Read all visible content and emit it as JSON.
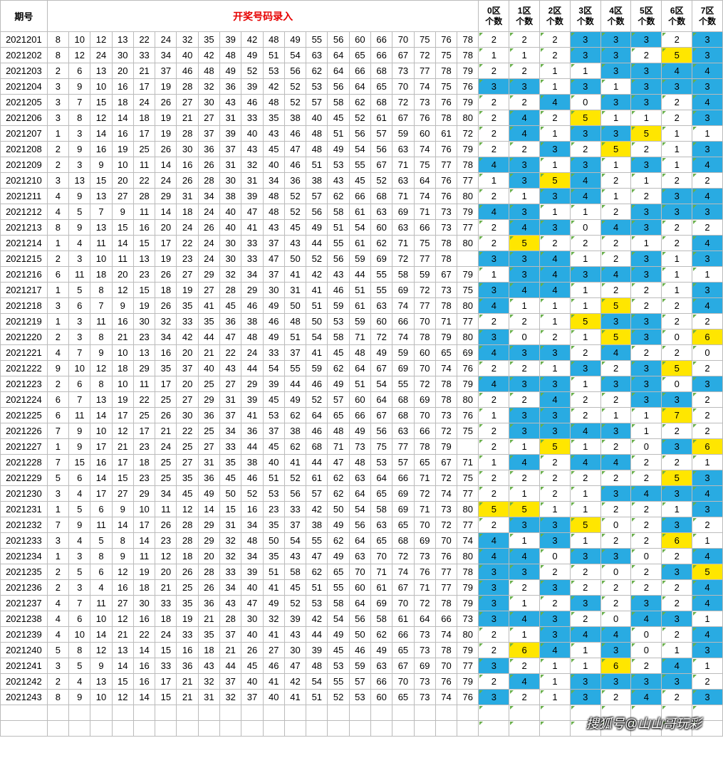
{
  "header": {
    "period": "期号",
    "main_title": "开奖号码录入",
    "zone_labels": [
      "0区",
      "1区",
      "2区",
      "3区",
      "4区",
      "5区",
      "6区",
      "7区"
    ],
    "zone_sub": "个数"
  },
  "watermark": "搜狐号@山山哥玩彩",
  "hl_rules": {
    "blue_min": 3,
    "blue_max": 4,
    "yellow_min": 5
  },
  "rows": [
    {
      "p": "2021201",
      "n": [
        8,
        10,
        12,
        13,
        22,
        24,
        32,
        35,
        39,
        42,
        48,
        49,
        55,
        56,
        60,
        66,
        70,
        75,
        76,
        78
      ],
      "z": [
        2,
        2,
        2,
        3,
        3,
        3,
        2,
        3
      ]
    },
    {
      "p": "2021202",
      "n": [
        8,
        12,
        24,
        30,
        33,
        34,
        40,
        42,
        48,
        49,
        51,
        54,
        63,
        64,
        65,
        66,
        67,
        72,
        75,
        78
      ],
      "z": [
        1,
        1,
        2,
        3,
        3,
        2,
        5,
        3
      ]
    },
    {
      "p": "2021203",
      "n": [
        2,
        6,
        13,
        20,
        21,
        37,
        46,
        48,
        49,
        52,
        53,
        56,
        62,
        64,
        66,
        68,
        73,
        77,
        78,
        79
      ],
      "z": [
        2,
        2,
        1,
        1,
        3,
        3,
        4,
        4
      ]
    },
    {
      "p": "2021204",
      "n": [
        3,
        9,
        10,
        16,
        17,
        19,
        28,
        32,
        36,
        39,
        42,
        52,
        53,
        56,
        64,
        65,
        70,
        74,
        75,
        76
      ],
      "z": [
        3,
        3,
        1,
        3,
        1,
        3,
        3,
        3
      ]
    },
    {
      "p": "2021205",
      "n": [
        3,
        7,
        15,
        18,
        24,
        26,
        27,
        30,
        43,
        46,
        48,
        52,
        57,
        58,
        62,
        68,
        72,
        73,
        76,
        79
      ],
      "z": [
        2,
        2,
        4,
        0,
        3,
        3,
        2,
        4
      ]
    },
    {
      "p": "2021206",
      "n": [
        3,
        8,
        12,
        14,
        18,
        19,
        21,
        27,
        31,
        33,
        35,
        38,
        40,
        45,
        52,
        61,
        67,
        76,
        78,
        80
      ],
      "z": [
        2,
        4,
        2,
        5,
        1,
        1,
        2,
        3
      ]
    },
    {
      "p": "2021207",
      "n": [
        1,
        3,
        14,
        16,
        17,
        19,
        28,
        37,
        39,
        40,
        43,
        46,
        48,
        51,
        56,
        57,
        59,
        60,
        61,
        72
      ],
      "z": [
        2,
        4,
        1,
        3,
        3,
        5,
        1,
        1
      ]
    },
    {
      "p": "2021208",
      "n": [
        2,
        9,
        16,
        19,
        25,
        26,
        30,
        36,
        37,
        43,
        45,
        47,
        48,
        49,
        54,
        56,
        63,
        74,
        76,
        79
      ],
      "z": [
        2,
        2,
        3,
        2,
        5,
        2,
        1,
        3
      ]
    },
    {
      "p": "2021209",
      "n": [
        2,
        3,
        9,
        10,
        11,
        14,
        16,
        26,
        31,
        32,
        40,
        46,
        51,
        53,
        55,
        67,
        71,
        75,
        77,
        78
      ],
      "z": [
        4,
        3,
        1,
        3,
        1,
        3,
        1,
        4
      ]
    },
    {
      "p": "2021210",
      "n": [
        3,
        13,
        15,
        20,
        22,
        24,
        26,
        28,
        30,
        31,
        34,
        36,
        38,
        43,
        45,
        52,
        63,
        64,
        76,
        77
      ],
      "z": [
        1,
        3,
        5,
        4,
        2,
        1,
        2,
        2
      ]
    },
    {
      "p": "2021211",
      "n": [
        4,
        9,
        13,
        27,
        28,
        29,
        31,
        34,
        38,
        39,
        48,
        52,
        57,
        62,
        66,
        68,
        71,
        74,
        76,
        80
      ],
      "z": [
        2,
        1,
        3,
        4,
        1,
        2,
        3,
        4
      ]
    },
    {
      "p": "2021212",
      "n": [
        4,
        5,
        7,
        9,
        11,
        14,
        18,
        24,
        40,
        47,
        48,
        52,
        56,
        58,
        61,
        63,
        69,
        71,
        73,
        79
      ],
      "z": [
        4,
        3,
        1,
        1,
        2,
        3,
        3,
        3
      ]
    },
    {
      "p": "2021213",
      "n": [
        8,
        9,
        13,
        15,
        16,
        20,
        24,
        26,
        40,
        41,
        43,
        45,
        49,
        51,
        54,
        60,
        63,
        66,
        73,
        77
      ],
      "z": [
        2,
        4,
        3,
        0,
        4,
        3,
        2,
        2
      ]
    },
    {
      "p": "2021214",
      "n": [
        1,
        4,
        11,
        14,
        15,
        17,
        22,
        24,
        30,
        33,
        37,
        43,
        44,
        55,
        61,
        62,
        71,
        75,
        78,
        80
      ],
      "z": [
        2,
        5,
        2,
        2,
        2,
        1,
        2,
        4
      ]
    },
    {
      "p": "2021215",
      "n": [
        2,
        3,
        10,
        11,
        13,
        19,
        23,
        24,
        30,
        33,
        47,
        50,
        52,
        56,
        59,
        69,
        72,
        77,
        78,
        ""
      ],
      "z": [
        3,
        3,
        4,
        1,
        2,
        3,
        1,
        3
      ]
    },
    {
      "p": "2021216",
      "n": [
        6,
        11,
        18,
        20,
        23,
        26,
        27,
        29,
        32,
        34,
        37,
        41,
        42,
        43,
        44,
        55,
        58,
        59,
        67,
        79
      ],
      "z": [
        1,
        3,
        4,
        3,
        4,
        3,
        1,
        1
      ]
    },
    {
      "p": "2021217",
      "n": [
        1,
        5,
        8,
        12,
        15,
        18,
        19,
        27,
        28,
        29,
        30,
        31,
        41,
        46,
        51,
        55,
        69,
        72,
        73,
        75
      ],
      "z": [
        3,
        4,
        4,
        1,
        2,
        2,
        1,
        3
      ]
    },
    {
      "p": "2021218",
      "n": [
        3,
        6,
        7,
        9,
        19,
        26,
        35,
        41,
        45,
        46,
        49,
        50,
        51,
        59,
        61,
        63,
        74,
        77,
        78,
        80
      ],
      "z": [
        4,
        1,
        1,
        1,
        5,
        2,
        2,
        4
      ]
    },
    {
      "p": "2021219",
      "n": [
        1,
        3,
        11,
        16,
        30,
        32,
        33,
        35,
        36,
        38,
        46,
        48,
        50,
        53,
        59,
        60,
        66,
        70,
        71,
        77
      ],
      "z": [
        2,
        2,
        1,
        5,
        3,
        3,
        2,
        2
      ]
    },
    {
      "p": "2021220",
      "n": [
        2,
        3,
        8,
        21,
        23,
        34,
        42,
        44,
        47,
        48,
        49,
        51,
        54,
        58,
        71,
        72,
        74,
        78,
        79,
        80
      ],
      "z": [
        3,
        0,
        2,
        1,
        5,
        3,
        0,
        6
      ]
    },
    {
      "p": "2021221",
      "n": [
        4,
        7,
        9,
        10,
        13,
        16,
        20,
        21,
        22,
        24,
        33,
        37,
        41,
        45,
        48,
        49,
        59,
        60,
        65,
        69
      ],
      "z": [
        4,
        3,
        3,
        2,
        4,
        2,
        2,
        0
      ]
    },
    {
      "p": "2021222",
      "n": [
        9,
        10,
        12,
        18,
        29,
        35,
        37,
        40,
        43,
        44,
        54,
        55,
        59,
        62,
        64,
        67,
        69,
        70,
        74,
        76
      ],
      "z": [
        2,
        2,
        1,
        3,
        2,
        3,
        5,
        2
      ]
    },
    {
      "p": "2021223",
      "n": [
        2,
        6,
        8,
        10,
        11,
        17,
        20,
        25,
        27,
        29,
        39,
        44,
        46,
        49,
        51,
        54,
        55,
        72,
        78,
        79
      ],
      "z": [
        4,
        3,
        3,
        1,
        3,
        3,
        0,
        3
      ]
    },
    {
      "p": "2021224",
      "n": [
        6,
        7,
        13,
        19,
        22,
        25,
        27,
        29,
        31,
        39,
        45,
        49,
        52,
        57,
        60,
        64,
        68,
        69,
        78,
        80
      ],
      "z": [
        2,
        2,
        4,
        2,
        2,
        3,
        3,
        2
      ]
    },
    {
      "p": "2021225",
      "n": [
        6,
        11,
        14,
        17,
        25,
        26,
        30,
        36,
        37,
        41,
        53,
        62,
        64,
        65,
        66,
        67,
        68,
        70,
        73,
        76
      ],
      "z": [
        1,
        3,
        3,
        2,
        1,
        1,
        7,
        2
      ]
    },
    {
      "p": "2021226",
      "n": [
        7,
        9,
        10,
        12,
        17,
        21,
        22,
        25,
        34,
        36,
        37,
        38,
        46,
        48,
        49,
        56,
        63,
        66,
        72,
        75
      ],
      "z": [
        2,
        3,
        3,
        4,
        3,
        1,
        2,
        2
      ]
    },
    {
      "p": "2021227",
      "n": [
        1,
        9,
        17,
        21,
        23,
        24,
        25,
        27,
        33,
        44,
        45,
        62,
        68,
        71,
        73,
        75,
        77,
        78,
        79,
        ""
      ],
      "z": [
        2,
        1,
        5,
        1,
        2,
        0,
        3,
        6
      ]
    },
    {
      "p": "2021228",
      "n": [
        7,
        15,
        16,
        17,
        18,
        25,
        27,
        31,
        35,
        38,
        40,
        41,
        44,
        47,
        48,
        53,
        57,
        65,
        67,
        71
      ],
      "z": [
        1,
        4,
        2,
        4,
        4,
        2,
        2,
        1
      ]
    },
    {
      "p": "2021229",
      "n": [
        5,
        6,
        14,
        15,
        23,
        25,
        35,
        36,
        45,
        46,
        51,
        52,
        61,
        62,
        63,
        64,
        66,
        71,
        72,
        75
      ],
      "z": [
        2,
        2,
        2,
        2,
        2,
        2,
        5,
        3
      ]
    },
    {
      "p": "2021230",
      "n": [
        3,
        4,
        17,
        27,
        29,
        34,
        45,
        49,
        50,
        52,
        53,
        56,
        57,
        62,
        64,
        65,
        69,
        72,
        74,
        77
      ],
      "z": [
        2,
        1,
        2,
        1,
        3,
        4,
        3,
        4
      ]
    },
    {
      "p": "2021231",
      "n": [
        1,
        5,
        6,
        9,
        10,
        11,
        12,
        14,
        15,
        16,
        23,
        33,
        42,
        50,
        54,
        58,
        69,
        71,
        73,
        80
      ],
      "z": [
        5,
        5,
        1,
        1,
        2,
        2,
        1,
        3
      ]
    },
    {
      "p": "2021232",
      "n": [
        7,
        9,
        11,
        14,
        17,
        26,
        28,
        29,
        31,
        34,
        35,
        37,
        38,
        49,
        56,
        63,
        65,
        70,
        72,
        77
      ],
      "z": [
        2,
        3,
        3,
        5,
        0,
        2,
        3,
        2
      ]
    },
    {
      "p": "2021233",
      "n": [
        3,
        4,
        5,
        8,
        14,
        23,
        28,
        29,
        32,
        48,
        50,
        54,
        55,
        62,
        64,
        65,
        68,
        69,
        70,
        74
      ],
      "z": [
        4,
        1,
        3,
        1,
        2,
        2,
        6,
        1
      ]
    },
    {
      "p": "2021234",
      "n": [
        1,
        3,
        8,
        9,
        11,
        12,
        18,
        20,
        32,
        34,
        35,
        43,
        47,
        49,
        63,
        70,
        72,
        73,
        76,
        80
      ],
      "z": [
        4,
        4,
        0,
        3,
        3,
        0,
        2,
        4
      ]
    },
    {
      "p": "2021235",
      "n": [
        2,
        5,
        6,
        12,
        19,
        20,
        26,
        28,
        33,
        39,
        51,
        58,
        62,
        65,
        70,
        71,
        74,
        76,
        77,
        78
      ],
      "z": [
        3,
        3,
        2,
        2,
        0,
        2,
        3,
        5
      ]
    },
    {
      "p": "2021236",
      "n": [
        2,
        3,
        4,
        16,
        18,
        21,
        25,
        26,
        34,
        40,
        41,
        45,
        51,
        55,
        60,
        61,
        67,
        71,
        77,
        79
      ],
      "z": [
        3,
        2,
        3,
        2,
        2,
        2,
        2,
        4
      ]
    },
    {
      "p": "2021237",
      "n": [
        4,
        7,
        11,
        27,
        30,
        33,
        35,
        36,
        43,
        47,
        49,
        52,
        53,
        58,
        64,
        69,
        70,
        72,
        78,
        79
      ],
      "z": [
        3,
        1,
        2,
        3,
        2,
        3,
        2,
        4
      ]
    },
    {
      "p": "2021238",
      "n": [
        4,
        6,
        10,
        12,
        16,
        18,
        19,
        21,
        28,
        30,
        32,
        39,
        42,
        54,
        56,
        58,
        61,
        64,
        66,
        73
      ],
      "z": [
        3,
        4,
        3,
        2,
        0,
        4,
        3,
        1
      ]
    },
    {
      "p": "2021239",
      "n": [
        4,
        10,
        14,
        21,
        22,
        24,
        33,
        35,
        37,
        40,
        41,
        43,
        44,
        49,
        50,
        62,
        66,
        73,
        74,
        80
      ],
      "z": [
        2,
        1,
        3,
        4,
        4,
        0,
        2,
        4
      ]
    },
    {
      "p": "2021240",
      "n": [
        5,
        8,
        12,
        13,
        14,
        15,
        16,
        18,
        21,
        26,
        27,
        30,
        39,
        45,
        46,
        49,
        65,
        73,
        78,
        79
      ],
      "z": [
        2,
        6,
        4,
        1,
        3,
        0,
        1,
        3
      ]
    },
    {
      "p": "2021241",
      "n": [
        3,
        5,
        9,
        14,
        16,
        33,
        36,
        43,
        44,
        45,
        46,
        47,
        48,
        53,
        59,
        63,
        67,
        69,
        70,
        77
      ],
      "z": [
        3,
        2,
        1,
        1,
        6,
        2,
        4,
        1
      ]
    },
    {
      "p": "2021242",
      "n": [
        2,
        4,
        13,
        15,
        16,
        17,
        21,
        32,
        37,
        40,
        41,
        42,
        54,
        55,
        57,
        66,
        70,
        73,
        76,
        79
      ],
      "z": [
        2,
        4,
        1,
        3,
        3,
        3,
        3,
        2
      ]
    },
    {
      "p": "2021243",
      "n": [
        8,
        9,
        10,
        12,
        14,
        15,
        21,
        31,
        32,
        37,
        40,
        41,
        51,
        52,
        53,
        60,
        65,
        73,
        74,
        76
      ],
      "z": [
        3,
        2,
        1,
        3,
        2,
        4,
        2,
        3
      ]
    },
    {
      "p": "",
      "n": [
        "",
        "",
        "",
        "",
        "",
        "",
        "",
        "",
        "",
        "",
        "",
        "",
        "",
        "",
        "",
        "",
        "",
        "",
        "",
        ""
      ],
      "z": [
        "",
        "",
        "",
        "",
        "",
        "",
        "",
        ""
      ]
    },
    {
      "p": "",
      "n": [
        "",
        "",
        "",
        "",
        "",
        "",
        "",
        "",
        "",
        "",
        "",
        "",
        "",
        "",
        "",
        "",
        "",
        "",
        "",
        ""
      ],
      "z": [
        "",
        "",
        "",
        "",
        "",
        "",
        "",
        ""
      ]
    }
  ]
}
